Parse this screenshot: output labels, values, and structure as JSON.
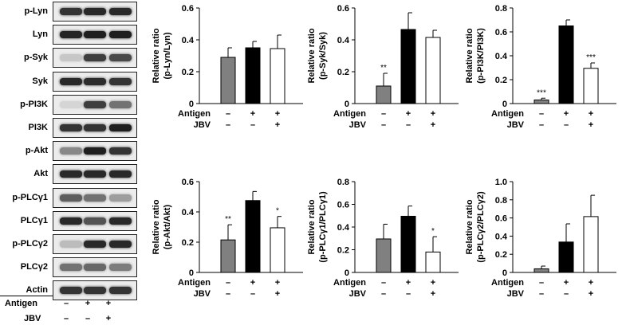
{
  "blot": {
    "rows": [
      {
        "label": "p-Lyn",
        "intensity": [
          0.85,
          0.9,
          0.9
        ]
      },
      {
        "label": "Lyn",
        "intensity": [
          0.92,
          0.95,
          0.95
        ]
      },
      {
        "label": "p-Syk",
        "intensity": [
          0.15,
          0.8,
          0.75
        ]
      },
      {
        "label": "Syk",
        "intensity": [
          0.9,
          0.88,
          0.85
        ]
      },
      {
        "label": "p-PI3K",
        "intensity": [
          0.08,
          0.8,
          0.55
        ]
      },
      {
        "label": "PI3K",
        "intensity": [
          0.85,
          0.85,
          0.95
        ]
      },
      {
        "label": "p-Akt",
        "intensity": [
          0.45,
          0.95,
          0.85
        ]
      },
      {
        "label": "Akt",
        "intensity": [
          0.9,
          0.9,
          0.9
        ]
      },
      {
        "label": "p-PLCγ1",
        "intensity": [
          0.65,
          0.55,
          0.35
        ]
      },
      {
        "label": "PLCγ1",
        "intensity": [
          0.9,
          0.7,
          0.9
        ]
      },
      {
        "label": "p-PLCγ2",
        "intensity": [
          0.2,
          0.9,
          0.9
        ]
      },
      {
        "label": "PLCγ2",
        "intensity": [
          0.55,
          0.6,
          0.5
        ]
      },
      {
        "label": "Actin",
        "intensity": [
          0.85,
          0.85,
          0.85
        ]
      }
    ],
    "conditions": [
      {
        "label": "Antigen",
        "signs": [
          "–",
          "+",
          "+"
        ]
      },
      {
        "label": "JBV",
        "signs": [
          "–",
          "–",
          "+"
        ]
      }
    ]
  },
  "colors": {
    "control": "#808080",
    "antigen": "#000000",
    "jbv": "#ffffff"
  },
  "chart_data": [
    {
      "type": "bar",
      "ylabel_line1": "Relative ratio",
      "ylabel_line2": "(p-Lyn/Lyn)",
      "ylim": [
        0,
        0.6
      ],
      "yticks": [
        "0",
        "0.2",
        "0.4",
        "0.6"
      ],
      "values": [
        0.29,
        0.35,
        0.345
      ],
      "errors": [
        0.06,
        0.04,
        0.085
      ],
      "significance": [
        "",
        "",
        ""
      ],
      "conditions": [
        {
          "label": "Antigen",
          "signs": [
            "–",
            "+",
            "+"
          ]
        },
        {
          "label": "JBV",
          "signs": [
            "–",
            "–",
            "+"
          ]
        }
      ]
    },
    {
      "type": "bar",
      "ylabel_line1": "Relative ratio",
      "ylabel_line2": "(p-Syk/Syk)",
      "ylim": [
        0,
        0.6
      ],
      "yticks": [
        "0",
        "0.2",
        "0.4",
        "0.6"
      ],
      "values": [
        0.11,
        0.465,
        0.415
      ],
      "errors": [
        0.08,
        0.105,
        0.045
      ],
      "significance": [
        "**",
        "",
        ""
      ],
      "conditions": [
        {
          "label": "Antigen",
          "signs": [
            "–",
            "+",
            "+"
          ]
        },
        {
          "label": "JBV",
          "signs": [
            "–",
            "–",
            "+"
          ]
        }
      ]
    },
    {
      "type": "bar",
      "ylabel_line1": "Relative ratio",
      "ylabel_line2": "(p-PI3K/PI3K)",
      "ylim": [
        0,
        0.8
      ],
      "yticks": [
        "0",
        "0.2",
        "0.4",
        "0.6",
        "0.8"
      ],
      "values": [
        0.03,
        0.65,
        0.295
      ],
      "errors": [
        0.015,
        0.05,
        0.045
      ],
      "significance": [
        "***",
        "",
        "***"
      ],
      "conditions": [
        {
          "label": "Antigen",
          "signs": [
            "–",
            "+",
            "+"
          ]
        },
        {
          "label": "JBV",
          "signs": [
            "–",
            "–",
            "+"
          ]
        }
      ]
    },
    {
      "type": "bar",
      "ylabel_line1": "Relative ratio",
      "ylabel_line2": "(p-Akt/Akt)",
      "ylim": [
        0,
        0.6
      ],
      "yticks": [
        "0",
        "0.2",
        "0.4",
        "0.6"
      ],
      "values": [
        0.215,
        0.475,
        0.295
      ],
      "errors": [
        0.1,
        0.06,
        0.075
      ],
      "significance": [
        "**",
        "",
        "*"
      ],
      "conditions": [
        {
          "label": "Antigen",
          "signs": [
            "–",
            "+",
            "+"
          ]
        },
        {
          "label": "JBV",
          "signs": [
            "–",
            "–",
            "+"
          ]
        }
      ]
    },
    {
      "type": "bar",
      "ylabel_line1": "Relative ratio",
      "ylabel_line2": "(p-PLCγ1/PLCγ1)",
      "ylim": [
        0,
        0.8
      ],
      "yticks": [
        "0",
        "0.2",
        "0.4",
        "0.6",
        "0.8"
      ],
      "values": [
        0.295,
        0.495,
        0.18
      ],
      "errors": [
        0.13,
        0.09,
        0.135
      ],
      "significance": [
        "",
        "",
        "*"
      ],
      "conditions": [
        {
          "label": "Antigen",
          "signs": [
            "–",
            "+",
            "+"
          ]
        },
        {
          "label": "JBV",
          "signs": [
            "–",
            "–",
            "+"
          ]
        }
      ]
    },
    {
      "type": "bar",
      "ylabel_line1": "Relative ratio",
      "ylabel_line2": "(p-PLCγ2/PLCγ2)",
      "ylim": [
        0,
        1.0
      ],
      "yticks": [
        "0",
        "0.2",
        "0.4",
        "0.6",
        "0.8",
        "1.0"
      ],
      "values": [
        0.04,
        0.335,
        0.615
      ],
      "errors": [
        0.03,
        0.2,
        0.235
      ],
      "significance": [
        "",
        "",
        ""
      ],
      "conditions": [
        {
          "label": "Antigen",
          "signs": [
            "–",
            "+",
            "+"
          ]
        },
        {
          "label": "JBV",
          "signs": [
            "–",
            "–",
            "+"
          ]
        }
      ]
    }
  ]
}
